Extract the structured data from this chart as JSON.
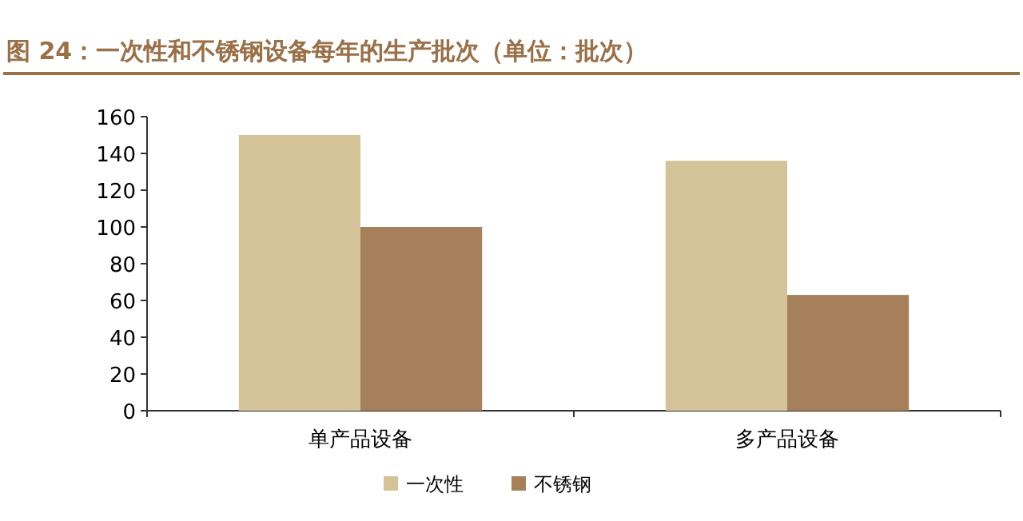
{
  "chart_data": {
    "type": "bar",
    "title": "图 24：一次性和不锈钢设备每年的生产批次（单位：批次）",
    "categories": [
      "单产品设备",
      "多产品设备"
    ],
    "series": [
      {
        "name": "一次性",
        "color": "#d4c298",
        "values": [
          150,
          136
        ]
      },
      {
        "name": "不锈钢",
        "color": "#a5805a",
        "values": [
          100,
          63
        ]
      }
    ],
    "ylim": [
      0,
      160
    ],
    "yticks": [
      0,
      20,
      40,
      60,
      80,
      100,
      120,
      140,
      160
    ],
    "legend": "bottom"
  }
}
